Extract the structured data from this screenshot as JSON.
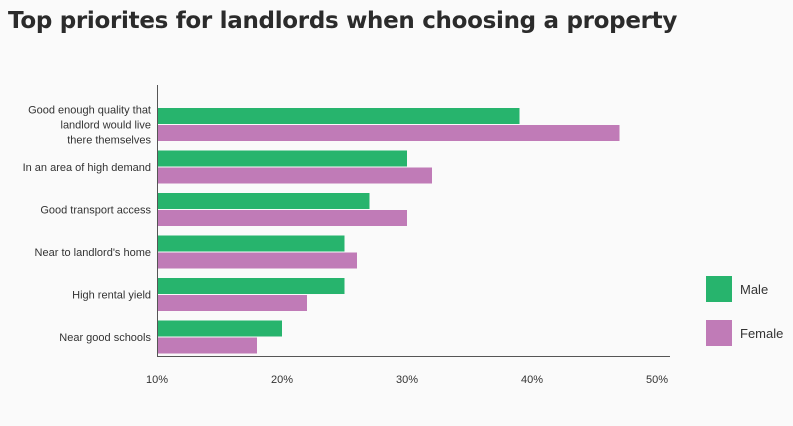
{
  "title": "Top priorites for landlords when choosing a property",
  "legend": {
    "male_label": "Male",
    "female_label": "Female"
  },
  "colors": {
    "male": "#27b46d",
    "female": "#c07bb7",
    "axis": "#555555"
  },
  "chart_data": {
    "type": "bar",
    "orientation": "horizontal",
    "categories": [
      [
        "Good enough quality that",
        "landlord would live",
        "there themselves"
      ],
      [
        "In an area of high demand"
      ],
      [
        "Good transport access"
      ],
      [
        "Near to landlord's home"
      ],
      [
        "High rental yield"
      ],
      [
        "Near good schools"
      ]
    ],
    "series": [
      {
        "name": "Male",
        "values": [
          39,
          30,
          27,
          25,
          25,
          20
        ]
      },
      {
        "name": "Female",
        "values": [
          47,
          32,
          30,
          26,
          22,
          18
        ]
      }
    ],
    "xlim": [
      10,
      51
    ],
    "xticks": [
      10,
      20,
      30,
      40,
      50
    ],
    "xtick_labels": [
      "10%",
      "20%",
      "30%",
      "40%",
      "50%"
    ],
    "grid": false,
    "legend_position": "right"
  }
}
